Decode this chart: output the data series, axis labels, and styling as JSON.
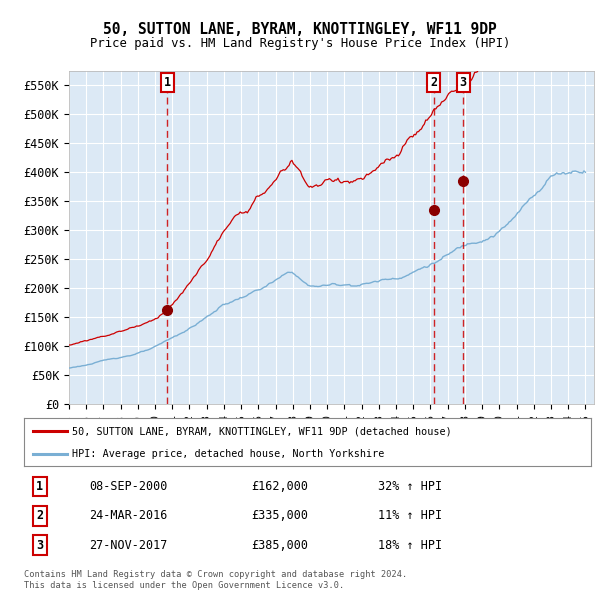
{
  "title": "50, SUTTON LANE, BYRAM, KNOTTINGLEY, WF11 9DP",
  "subtitle": "Price paid vs. HM Land Registry's House Price Index (HPI)",
  "ylim": [
    0,
    575000
  ],
  "yticks": [
    0,
    50000,
    100000,
    150000,
    200000,
    250000,
    300000,
    350000,
    400000,
    450000,
    500000,
    550000
  ],
  "ytick_labels": [
    "£0",
    "£50K",
    "£100K",
    "£150K",
    "£200K",
    "£250K",
    "£300K",
    "£350K",
    "£400K",
    "£450K",
    "£500K",
    "£550K"
  ],
  "background_color": "#dce9f5",
  "grid_color": "#ffffff",
  "red_line_color": "#cc0000",
  "blue_line_color": "#7aafd4",
  "marker_color": "#8b0000",
  "dashed_line_color": "#cc0000",
  "transactions": [
    {
      "year": 2000.7,
      "price": 162000,
      "label": "1"
    },
    {
      "year": 2016.2,
      "price": 335000,
      "label": "2"
    },
    {
      "year": 2017.9,
      "price": 385000,
      "label": "3"
    }
  ],
  "transaction_details": [
    {
      "label": "1",
      "date": "08-SEP-2000",
      "price": "£162,000",
      "hpi": "32% ↑ HPI"
    },
    {
      "label": "2",
      "date": "24-MAR-2016",
      "price": "£335,000",
      "hpi": "11% ↑ HPI"
    },
    {
      "label": "3",
      "date": "27-NOV-2017",
      "price": "£385,000",
      "hpi": "18% ↑ HPI"
    }
  ],
  "legend_entries": [
    "50, SUTTON LANE, BYRAM, KNOTTINGLEY, WF11 9DP (detached house)",
    "HPI: Average price, detached house, North Yorkshire"
  ],
  "footer1": "Contains HM Land Registry data © Crown copyright and database right 2024.",
  "footer2": "This data is licensed under the Open Government Licence v3.0."
}
